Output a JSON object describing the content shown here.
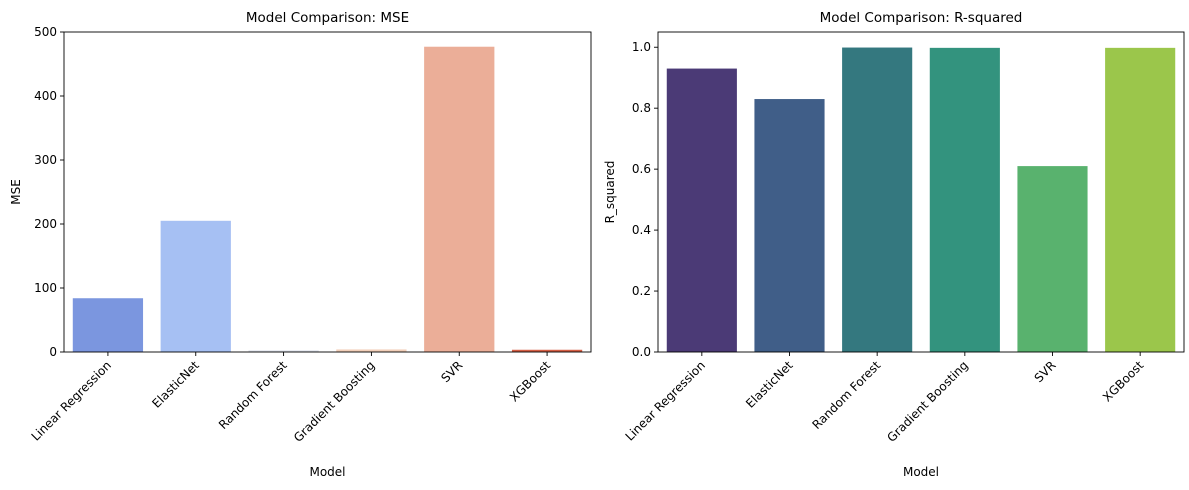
{
  "chart_data": [
    {
      "type": "bar",
      "title": "Model Comparison: MSE",
      "xlabel": "Model",
      "ylabel": "MSE",
      "categories": [
        "Linear Regression",
        "ElasticNet",
        "Random Forest",
        "Gradient Boosting",
        "SVR",
        "XGBoost"
      ],
      "values": [
        84,
        205,
        2.5,
        4,
        477,
        3.5
      ],
      "ylim": [
        0,
        500
      ],
      "yticks": [
        0,
        100,
        200,
        300,
        400,
        500
      ],
      "ytick_labels": [
        "0",
        "100",
        "200",
        "300",
        "400",
        "500"
      ],
      "colors": [
        "#7b96df",
        "#a6c0f3",
        "#dbe0ea",
        "#f2cfb9",
        "#ebae98",
        "#d55e44"
      ],
      "grid": false,
      "legend": "none"
    },
    {
      "type": "bar",
      "title": "Model Comparison: R-squared",
      "xlabel": "Model",
      "ylabel": "R_squared",
      "categories": [
        "Linear Regression",
        "ElasticNet",
        "Random Forest",
        "Gradient Boosting",
        "SVR",
        "XGBoost"
      ],
      "values": [
        0.93,
        0.83,
        0.999,
        0.998,
        0.61,
        0.998
      ],
      "ylim": [
        0,
        1.05
      ],
      "yticks": [
        0,
        0.2,
        0.4,
        0.6,
        0.8,
        1.0
      ],
      "ytick_labels": [
        "0.0",
        "0.2",
        "0.4",
        "0.6",
        "0.8",
        "1.0"
      ],
      "colors": [
        "#4b3a76",
        "#405e88",
        "#34787f",
        "#33937e",
        "#59b26e",
        "#9bc64b"
      ],
      "grid": false,
      "legend": "none"
    }
  ]
}
